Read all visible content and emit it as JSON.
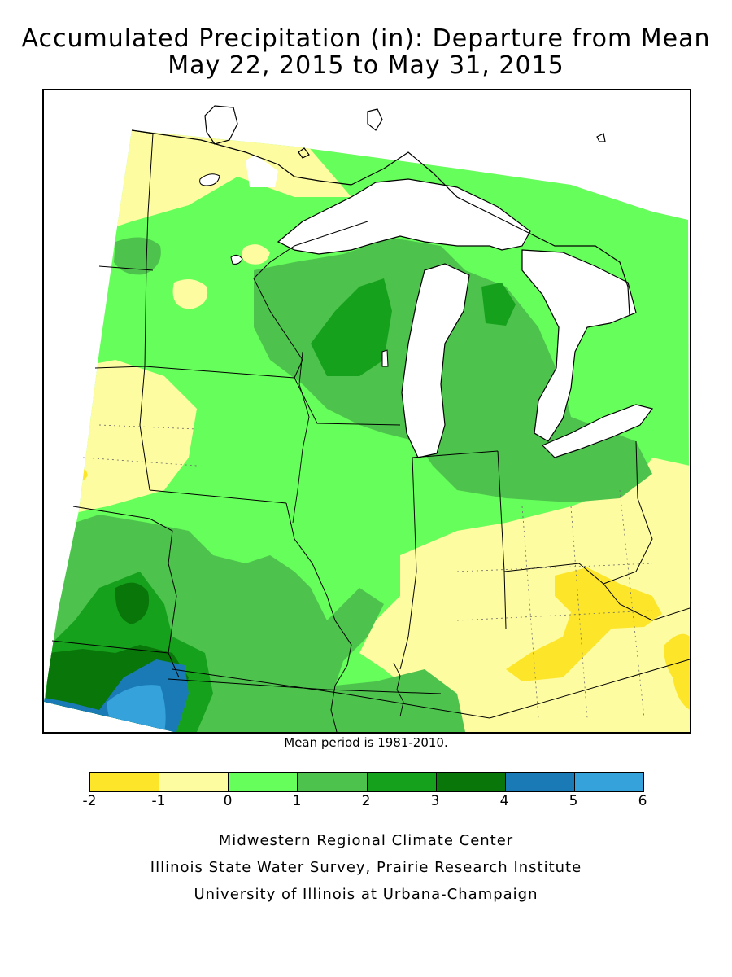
{
  "title_line1": "Accumulated Precipitation (in): Departure from Mean",
  "title_line2": "May 22, 2015 to May 31, 2015",
  "mean_period_note": "Mean period is 1981-2010.",
  "legend": {
    "ticks": [
      "-2",
      "-1",
      "0",
      "1",
      "2",
      "3",
      "4",
      "5",
      "6"
    ],
    "colors": [
      "#fde62a",
      "#fefca0",
      "#66fe5a",
      "#4dc34d",
      "#16a11c",
      "#097609",
      "#1a7ab6",
      "#35a2dc"
    ]
  },
  "credits": [
    "Midwestern Regional Climate Center",
    "Illinois State Water Survey, Prairie Research Institute",
    "University of Illinois at Urbana-Champaign"
  ],
  "palette": {
    "below_2": "#fde62a",
    "below_1": "#fefca0",
    "above_0": "#66fe5a",
    "above_1": "#4dc34d",
    "above_2": "#16a11c",
    "above_3": "#097609",
    "above_4": "#1a7ab6",
    "above_5": "#35a2dc",
    "water": "#ffffff",
    "borders": "#000000"
  }
}
